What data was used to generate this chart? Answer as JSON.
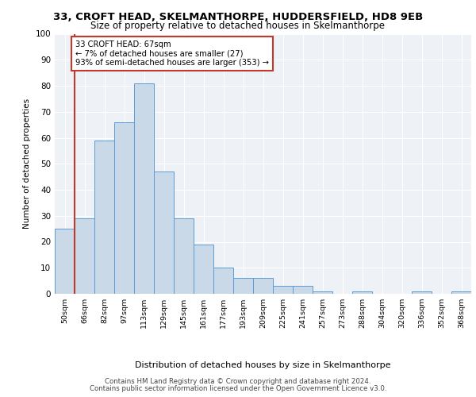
{
  "title1": "33, CROFT HEAD, SKELMANTHORPE, HUDDERSFIELD, HD8 9EB",
  "title2": "Size of property relative to detached houses in Skelmanthorpe",
  "xlabel": "Distribution of detached houses by size in Skelmanthorpe",
  "ylabel": "Number of detached properties",
  "bar_labels": [
    "50sqm",
    "66sqm",
    "82sqm",
    "97sqm",
    "113sqm",
    "129sqm",
    "145sqm",
    "161sqm",
    "177sqm",
    "193sqm",
    "209sqm",
    "225sqm",
    "241sqm",
    "257sqm",
    "273sqm",
    "288sqm",
    "304sqm",
    "320sqm",
    "336sqm",
    "352sqm",
    "368sqm"
  ],
  "bar_values": [
    25,
    29,
    59,
    66,
    81,
    47,
    29,
    19,
    10,
    6,
    6,
    3,
    3,
    1,
    0,
    1,
    0,
    0,
    1,
    0,
    1
  ],
  "bar_color": "#c9d9e8",
  "bar_edge_color": "#5b9bd5",
  "annotation_title": "33 CROFT HEAD: 67sqm",
  "annotation_line1": "← 7% of detached houses are smaller (27)",
  "annotation_line2": "93% of semi-detached houses are larger (353) →",
  "vline_color": "#c0392b",
  "annotation_box_color": "#c0392b",
  "ylim": [
    0,
    100
  ],
  "footer1": "Contains HM Land Registry data © Crown copyright and database right 2024.",
  "footer2": "Contains public sector information licensed under the Open Government Licence v3.0.",
  "background_color": "#eef2f7"
}
